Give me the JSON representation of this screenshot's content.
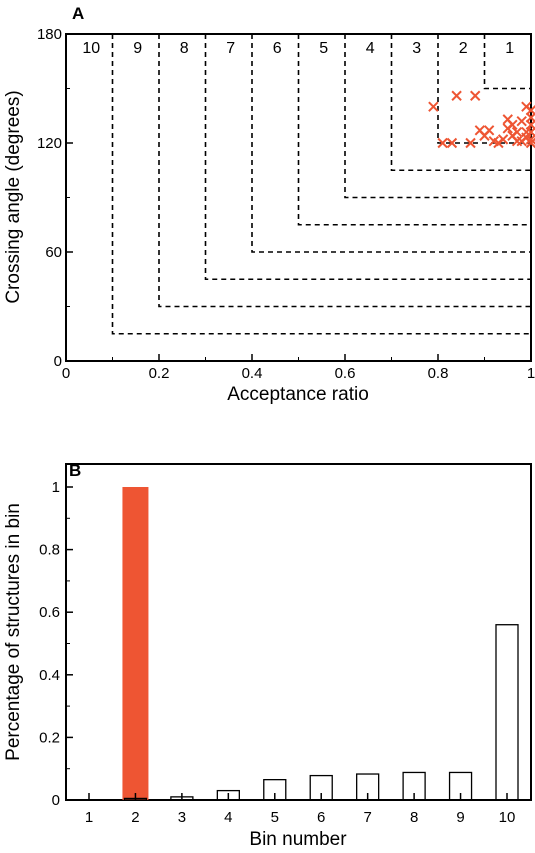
{
  "chart_data": [
    {
      "type": "scatter",
      "panel": "A",
      "xlabel": "Acceptance ratio",
      "ylabel": "Crossing angle (degrees)",
      "xlim": [
        0,
        1
      ],
      "ylim": [
        0,
        180
      ],
      "xticks": [
        "0",
        "0.2",
        "0.4",
        "0.6",
        "0.8",
        "1"
      ],
      "yticks": [
        "0",
        "60",
        "120",
        "180"
      ],
      "bins": [
        {
          "label": "10",
          "x_min": 0.1,
          "y_min": 15
        },
        {
          "label": "9",
          "x_min": 0.2,
          "y_min": 30
        },
        {
          "label": "8",
          "x_min": 0.3,
          "y_min": 45
        },
        {
          "label": "7",
          "x_min": 0.4,
          "y_min": 60
        },
        {
          "label": "6",
          "x_min": 0.5,
          "y_min": 75
        },
        {
          "label": "5",
          "x_min": 0.6,
          "y_min": 90
        },
        {
          "label": "4",
          "x_min": 0.7,
          "y_min": 105
        },
        {
          "label": "3",
          "x_min": 0.8,
          "y_min": 120
        },
        {
          "label": "2",
          "x_min": 0.9,
          "y_min": 150
        },
        {
          "label": "1",
          "x_min": 1.0,
          "y_min": 180
        }
      ],
      "points": [
        {
          "x": 0.79,
          "y": 140
        },
        {
          "x": 0.81,
          "y": 120
        },
        {
          "x": 0.83,
          "y": 120
        },
        {
          "x": 0.84,
          "y": 146
        },
        {
          "x": 0.88,
          "y": 146
        },
        {
          "x": 0.87,
          "y": 120
        },
        {
          "x": 0.89,
          "y": 127
        },
        {
          "x": 0.9,
          "y": 124
        },
        {
          "x": 0.91,
          "y": 127
        },
        {
          "x": 0.93,
          "y": 120
        },
        {
          "x": 0.94,
          "y": 122
        },
        {
          "x": 0.95,
          "y": 128
        },
        {
          "x": 0.95,
          "y": 133
        },
        {
          "x": 0.96,
          "y": 124
        },
        {
          "x": 0.97,
          "y": 121
        },
        {
          "x": 0.98,
          "y": 132
        },
        {
          "x": 0.99,
          "y": 140
        },
        {
          "x": 0.99,
          "y": 126
        },
        {
          "x": 1.0,
          "y": 138
        },
        {
          "x": 1.0,
          "y": 134
        },
        {
          "x": 1.0,
          "y": 130
        },
        {
          "x": 1.0,
          "y": 126
        },
        {
          "x": 1.0,
          "y": 122
        },
        {
          "x": 1.0,
          "y": 120
        },
        {
          "x": 0.98,
          "y": 121
        },
        {
          "x": 0.96,
          "y": 130
        },
        {
          "x": 0.92,
          "y": 121
        },
        {
          "x": 0.97,
          "y": 126
        },
        {
          "x": 0.99,
          "y": 123
        }
      ],
      "marker_color": "#ee5533"
    },
    {
      "type": "bar",
      "panel": "B",
      "xlabel": "Bin number",
      "ylabel": "Percentage of structures in bin",
      "ylim": [
        0,
        1.05
      ],
      "yticks": [
        "0",
        "0.2",
        "0.4",
        "0.6",
        "0.8",
        "1"
      ],
      "categories": [
        "1",
        "2",
        "3",
        "4",
        "5",
        "6",
        "7",
        "8",
        "9",
        "10"
      ],
      "series": [
        {
          "values": [
            0,
            1.0,
            0,
            0,
            0,
            0,
            0,
            0,
            0,
            0
          ],
          "color": "#ee5533",
          "fill": true
        },
        {
          "values": [
            0,
            0.005,
            0.01,
            0.03,
            0.065,
            0.078,
            0.083,
            0.088,
            0.088,
            0.56
          ],
          "color": "#000000",
          "fill": false
        }
      ]
    }
  ]
}
